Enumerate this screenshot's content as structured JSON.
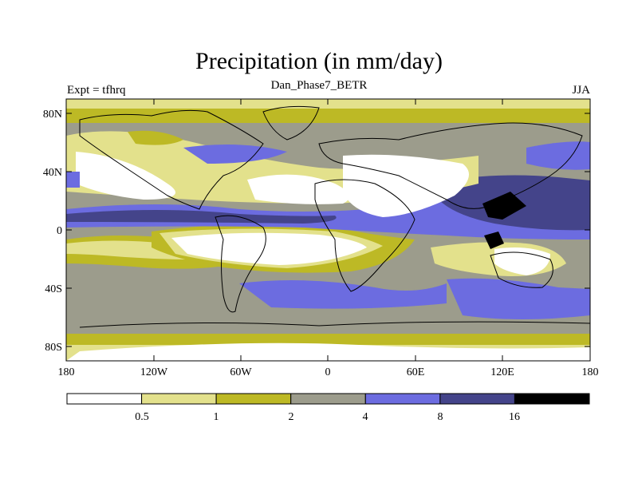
{
  "title": "Precipitation (in mm/day)",
  "subtitle": "Dan_Phase7_BETR",
  "left_label": "Expt = tfhrq",
  "right_label": "JJA",
  "lat_ticks": [
    "80N",
    "40N",
    "0",
    "40S",
    "80S"
  ],
  "lon_ticks": [
    "180",
    "120W",
    "60W",
    "0",
    "60E",
    "120E",
    "180"
  ],
  "colorbar": {
    "labels": [
      "0.5",
      "1",
      "2",
      "4",
      "8",
      "16"
    ],
    "colors": [
      "#ffffff",
      "#e3e18c",
      "#bdb925",
      "#9c9c8c",
      "#6c6ce0",
      "#44448a",
      "#000000"
    ]
  },
  "map": {
    "lat_range": [
      -90,
      90
    ],
    "lon_range": [
      -180,
      180
    ],
    "levels_mm_per_day": [
      0.5,
      1,
      2,
      4,
      8,
      16
    ]
  }
}
